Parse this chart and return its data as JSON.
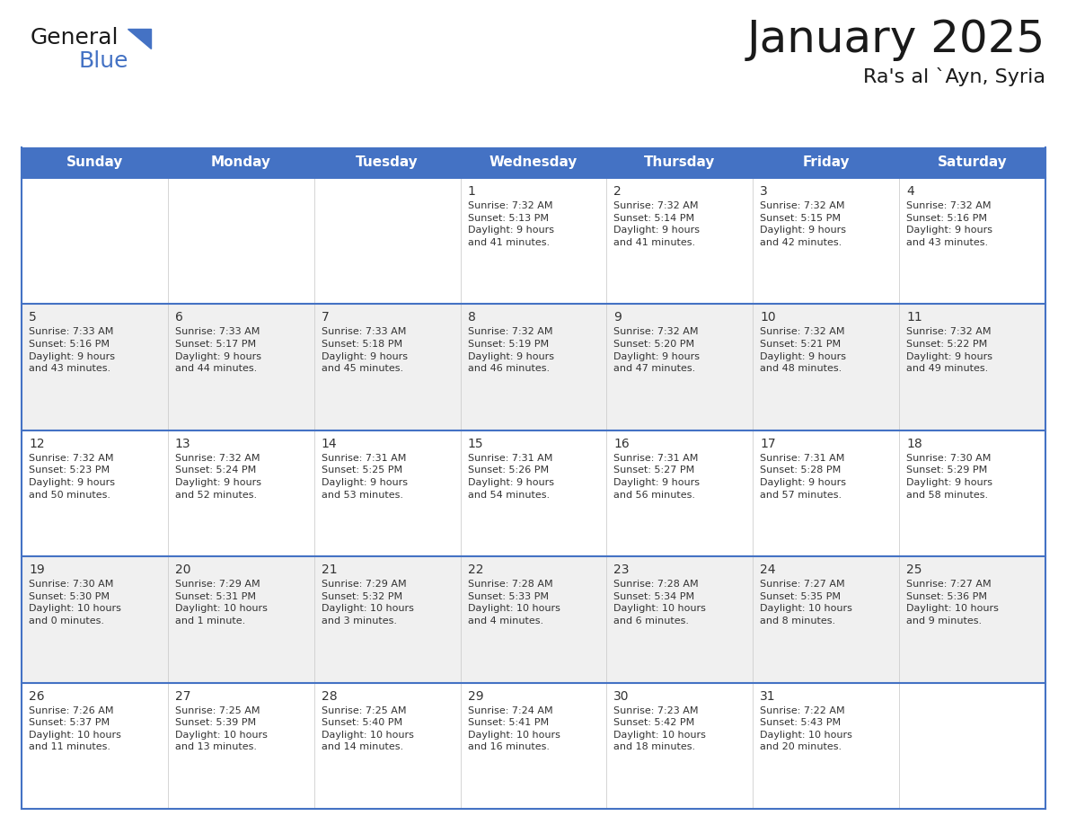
{
  "title": "January 2025",
  "subtitle": "Ra's al `Ayn, Syria",
  "header_bg_color": "#4472C4",
  "header_text_color": "#FFFFFF",
  "cell_bg_white": "#FFFFFF",
  "cell_bg_gray": "#F0F0F0",
  "border_color": "#4472C4",
  "cell_border_color": "#CCCCCC",
  "title_color": "#1a1a1a",
  "subtitle_color": "#1a1a1a",
  "text_color": "#333333",
  "day_names": [
    "Sunday",
    "Monday",
    "Tuesday",
    "Wednesday",
    "Thursday",
    "Friday",
    "Saturday"
  ],
  "weeks": [
    [
      {
        "day": "",
        "info": ""
      },
      {
        "day": "",
        "info": ""
      },
      {
        "day": "",
        "info": ""
      },
      {
        "day": "1",
        "info": "Sunrise: 7:32 AM\nSunset: 5:13 PM\nDaylight: 9 hours\nand 41 minutes."
      },
      {
        "day": "2",
        "info": "Sunrise: 7:32 AM\nSunset: 5:14 PM\nDaylight: 9 hours\nand 41 minutes."
      },
      {
        "day": "3",
        "info": "Sunrise: 7:32 AM\nSunset: 5:15 PM\nDaylight: 9 hours\nand 42 minutes."
      },
      {
        "day": "4",
        "info": "Sunrise: 7:32 AM\nSunset: 5:16 PM\nDaylight: 9 hours\nand 43 minutes."
      }
    ],
    [
      {
        "day": "5",
        "info": "Sunrise: 7:33 AM\nSunset: 5:16 PM\nDaylight: 9 hours\nand 43 minutes."
      },
      {
        "day": "6",
        "info": "Sunrise: 7:33 AM\nSunset: 5:17 PM\nDaylight: 9 hours\nand 44 minutes."
      },
      {
        "day": "7",
        "info": "Sunrise: 7:33 AM\nSunset: 5:18 PM\nDaylight: 9 hours\nand 45 minutes."
      },
      {
        "day": "8",
        "info": "Sunrise: 7:32 AM\nSunset: 5:19 PM\nDaylight: 9 hours\nand 46 minutes."
      },
      {
        "day": "9",
        "info": "Sunrise: 7:32 AM\nSunset: 5:20 PM\nDaylight: 9 hours\nand 47 minutes."
      },
      {
        "day": "10",
        "info": "Sunrise: 7:32 AM\nSunset: 5:21 PM\nDaylight: 9 hours\nand 48 minutes."
      },
      {
        "day": "11",
        "info": "Sunrise: 7:32 AM\nSunset: 5:22 PM\nDaylight: 9 hours\nand 49 minutes."
      }
    ],
    [
      {
        "day": "12",
        "info": "Sunrise: 7:32 AM\nSunset: 5:23 PM\nDaylight: 9 hours\nand 50 minutes."
      },
      {
        "day": "13",
        "info": "Sunrise: 7:32 AM\nSunset: 5:24 PM\nDaylight: 9 hours\nand 52 minutes."
      },
      {
        "day": "14",
        "info": "Sunrise: 7:31 AM\nSunset: 5:25 PM\nDaylight: 9 hours\nand 53 minutes."
      },
      {
        "day": "15",
        "info": "Sunrise: 7:31 AM\nSunset: 5:26 PM\nDaylight: 9 hours\nand 54 minutes."
      },
      {
        "day": "16",
        "info": "Sunrise: 7:31 AM\nSunset: 5:27 PM\nDaylight: 9 hours\nand 56 minutes."
      },
      {
        "day": "17",
        "info": "Sunrise: 7:31 AM\nSunset: 5:28 PM\nDaylight: 9 hours\nand 57 minutes."
      },
      {
        "day": "18",
        "info": "Sunrise: 7:30 AM\nSunset: 5:29 PM\nDaylight: 9 hours\nand 58 minutes."
      }
    ],
    [
      {
        "day": "19",
        "info": "Sunrise: 7:30 AM\nSunset: 5:30 PM\nDaylight: 10 hours\nand 0 minutes."
      },
      {
        "day": "20",
        "info": "Sunrise: 7:29 AM\nSunset: 5:31 PM\nDaylight: 10 hours\nand 1 minute."
      },
      {
        "day": "21",
        "info": "Sunrise: 7:29 AM\nSunset: 5:32 PM\nDaylight: 10 hours\nand 3 minutes."
      },
      {
        "day": "22",
        "info": "Sunrise: 7:28 AM\nSunset: 5:33 PM\nDaylight: 10 hours\nand 4 minutes."
      },
      {
        "day": "23",
        "info": "Sunrise: 7:28 AM\nSunset: 5:34 PM\nDaylight: 10 hours\nand 6 minutes."
      },
      {
        "day": "24",
        "info": "Sunrise: 7:27 AM\nSunset: 5:35 PM\nDaylight: 10 hours\nand 8 minutes."
      },
      {
        "day": "25",
        "info": "Sunrise: 7:27 AM\nSunset: 5:36 PM\nDaylight: 10 hours\nand 9 minutes."
      }
    ],
    [
      {
        "day": "26",
        "info": "Sunrise: 7:26 AM\nSunset: 5:37 PM\nDaylight: 10 hours\nand 11 minutes."
      },
      {
        "day": "27",
        "info": "Sunrise: 7:25 AM\nSunset: 5:39 PM\nDaylight: 10 hours\nand 13 minutes."
      },
      {
        "day": "28",
        "info": "Sunrise: 7:25 AM\nSunset: 5:40 PM\nDaylight: 10 hours\nand 14 minutes."
      },
      {
        "day": "29",
        "info": "Sunrise: 7:24 AM\nSunset: 5:41 PM\nDaylight: 10 hours\nand 16 minutes."
      },
      {
        "day": "30",
        "info": "Sunrise: 7:23 AM\nSunset: 5:42 PM\nDaylight: 10 hours\nand 18 minutes."
      },
      {
        "day": "31",
        "info": "Sunrise: 7:22 AM\nSunset: 5:43 PM\nDaylight: 10 hours\nand 20 minutes."
      },
      {
        "day": "",
        "info": ""
      }
    ]
  ],
  "week_bg": [
    "#FFFFFF",
    "#F0F0F0",
    "#FFFFFF",
    "#F0F0F0",
    "#FFFFFF"
  ],
  "logo_text_general": "General",
  "logo_text_blue": "Blue",
  "logo_color_general": "#1a1a1a",
  "logo_color_blue": "#4472C4",
  "logo_triangle_color": "#4472C4",
  "title_fontsize": 36,
  "subtitle_fontsize": 16,
  "header_fontsize": 11,
  "day_num_fontsize": 10,
  "info_fontsize": 8
}
